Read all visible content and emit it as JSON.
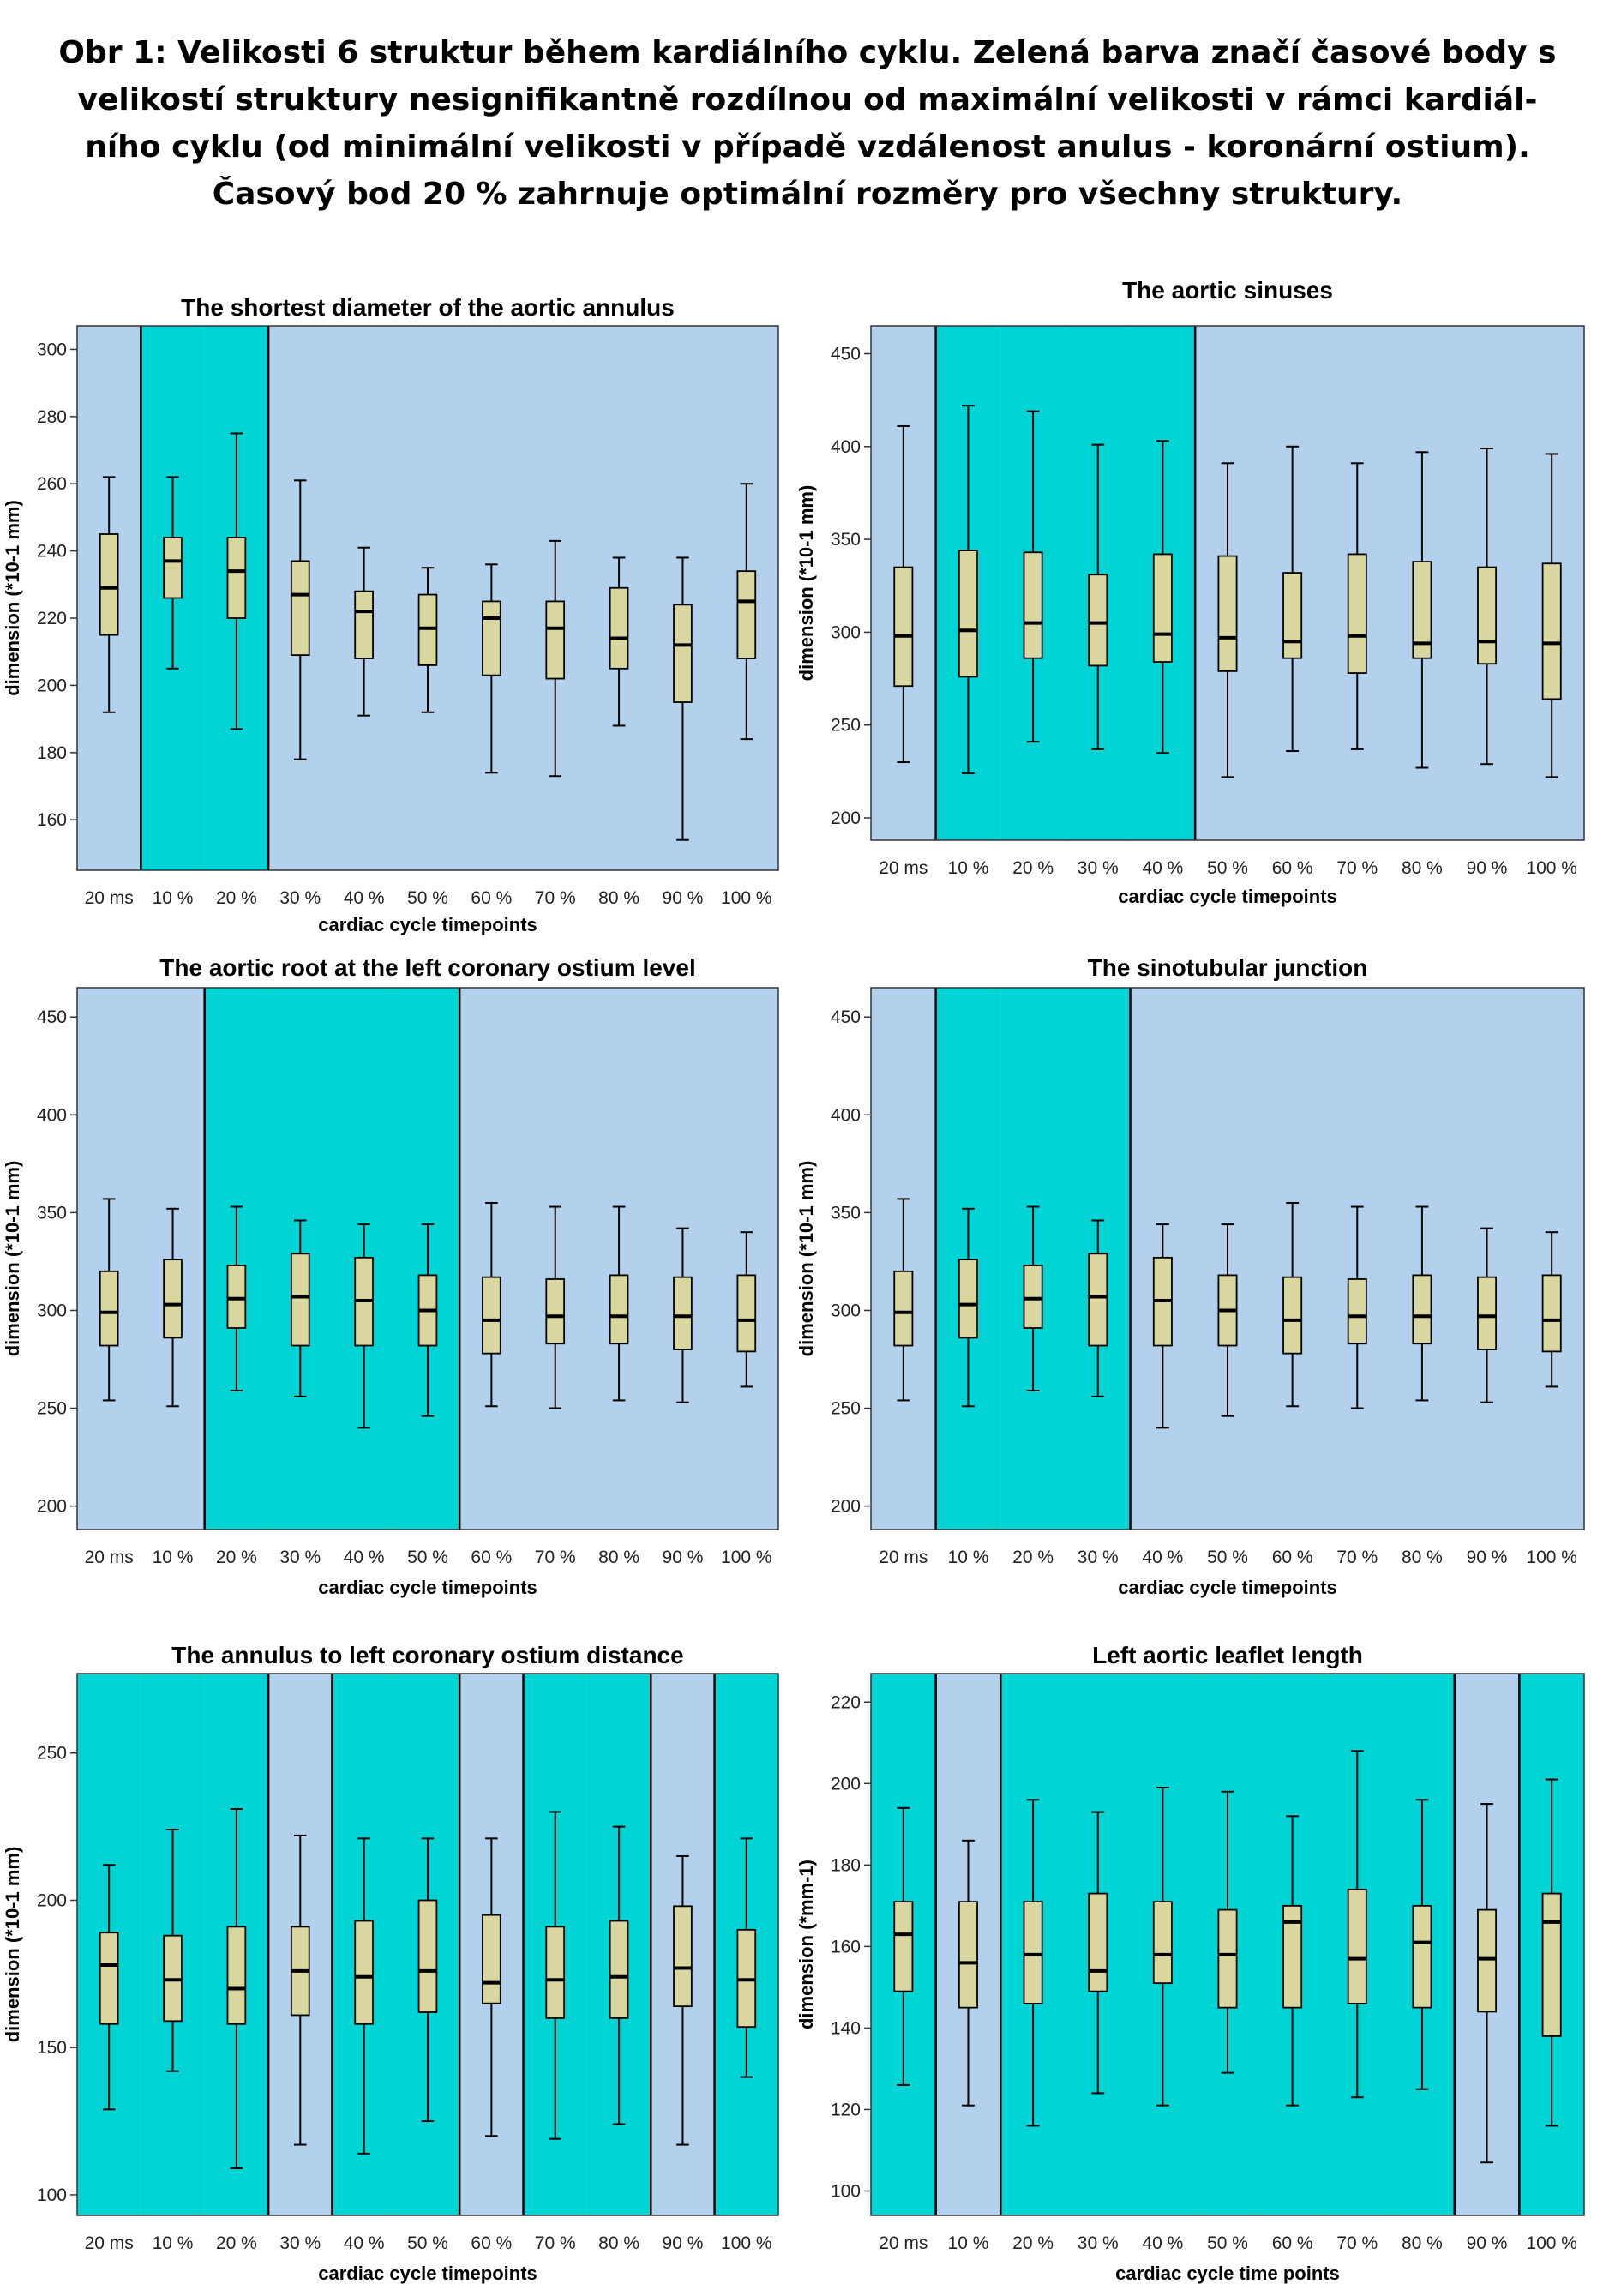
{
  "caption": {
    "line1": "Obr 1: Velikosti 6 struktur během kardiálního cyklu. Zelená barva značí časové body s",
    "line2": "velikostí struktury nesignifikantně rozdílnou od maximální velikosti v rámci kardiál-",
    "line3": "ního cyklu (od minimální velikosti v případě vzdálenost anulus - koronární ostium).",
    "line4": "Časový bod 20 % zahrnuje optimální rozměry pro všechny struktury."
  },
  "colors": {
    "background_blue": "#b3d0ec",
    "highlight_cyan": "#00d4d4",
    "box_fill": "#d9d6a0",
    "box_stroke": "#000000"
  },
  "chart_data": [
    {
      "type": "boxplot",
      "title": "The shortest diameter of the aortic annulus",
      "xlabel": "cardiac cycle timepoints",
      "ylabel": "dimension (*10-1 mm)",
      "categories": [
        "20 ms",
        "10 %",
        "20 %",
        "30 %",
        "40 %",
        "50 %",
        "60 %",
        "70 %",
        "80 %",
        "90 %",
        "100 %"
      ],
      "ylim": [
        145,
        307
      ],
      "yticks": [
        160,
        180,
        200,
        220,
        240,
        260,
        280,
        300
      ],
      "highlighted": [
        false,
        true,
        true,
        false,
        false,
        false,
        false,
        false,
        false,
        false,
        false
      ],
      "boxes": [
        {
          "min": 192,
          "q1": 215,
          "median": 229,
          "q3": 245,
          "max": 262
        },
        {
          "min": 205,
          "q1": 226,
          "median": 237,
          "q3": 244,
          "max": 262
        },
        {
          "min": 187,
          "q1": 220,
          "median": 234,
          "q3": 244,
          "max": 275
        },
        {
          "min": 178,
          "q1": 209,
          "median": 227,
          "q3": 237,
          "max": 261
        },
        {
          "min": 191,
          "q1": 208,
          "median": 222,
          "q3": 228,
          "max": 241
        },
        {
          "min": 192,
          "q1": 206,
          "median": 217,
          "q3": 227,
          "max": 235
        },
        {
          "min": 174,
          "q1": 203,
          "median": 220,
          "q3": 225,
          "max": 236
        },
        {
          "min": 173,
          "q1": 202,
          "median": 217,
          "q3": 225,
          "max": 243
        },
        {
          "min": 188,
          "q1": 205,
          "median": 214,
          "q3": 229,
          "max": 238
        },
        {
          "min": 154,
          "q1": 195,
          "median": 212,
          "q3": 224,
          "max": 238
        },
        {
          "min": 184,
          "q1": 208,
          "median": 225,
          "q3": 234,
          "max": 260
        }
      ]
    },
    {
      "type": "boxplot",
      "title": "The aortic sinuses",
      "xlabel": "cardiac cycle timepoints",
      "ylabel": "dimension (*10-1 mm)",
      "categories": [
        "20 ms",
        "10 %",
        "20 %",
        "30 %",
        "40 %",
        "50 %",
        "60 %",
        "70 %",
        "80 %",
        "90 %",
        "100 %"
      ],
      "ylim": [
        188,
        465
      ],
      "yticks": [
        200,
        250,
        300,
        350,
        400,
        450
      ],
      "highlighted": [
        false,
        true,
        true,
        true,
        true,
        false,
        false,
        false,
        false,
        false,
        false
      ],
      "boxes": [
        {
          "min": 230,
          "q1": 271,
          "median": 298,
          "q3": 335,
          "max": 411
        },
        {
          "min": 224,
          "q1": 276,
          "median": 301,
          "q3": 344,
          "max": 422
        },
        {
          "min": 241,
          "q1": 286,
          "median": 305,
          "q3": 343,
          "max": 419
        },
        {
          "min": 237,
          "q1": 282,
          "median": 305,
          "q3": 331,
          "max": 401
        },
        {
          "min": 235,
          "q1": 284,
          "median": 299,
          "q3": 342,
          "max": 403
        },
        {
          "min": 222,
          "q1": 279,
          "median": 297,
          "q3": 341,
          "max": 391
        },
        {
          "min": 236,
          "q1": 286,
          "median": 295,
          "q3": 332,
          "max": 400
        },
        {
          "min": 237,
          "q1": 278,
          "median": 298,
          "q3": 342,
          "max": 391
        },
        {
          "min": 227,
          "q1": 286,
          "median": 294,
          "q3": 338,
          "max": 397
        },
        {
          "min": 229,
          "q1": 283,
          "median": 295,
          "q3": 335,
          "max": 399
        },
        {
          "min": 222,
          "q1": 264,
          "median": 294,
          "q3": 337,
          "max": 396
        }
      ]
    },
    {
      "type": "boxplot",
      "title": "The aortic root at the left coronary ostium level",
      "xlabel": "cardiac cycle timepoints",
      "ylabel": "dimension (*10-1 mm)",
      "categories": [
        "20 ms",
        "10 %",
        "20 %",
        "30 %",
        "40 %",
        "50 %",
        "60 %",
        "70 %",
        "80 %",
        "90 %",
        "100 %"
      ],
      "ylim": [
        188,
        465
      ],
      "yticks": [
        200,
        250,
        300,
        350,
        400,
        450
      ],
      "highlighted": [
        false,
        false,
        true,
        true,
        true,
        true,
        false,
        false,
        false,
        false,
        false
      ],
      "boxes": [
        {
          "min": 254,
          "q1": 282,
          "median": 299,
          "q3": 320,
          "max": 357
        },
        {
          "min": 251,
          "q1": 286,
          "median": 303,
          "q3": 326,
          "max": 352
        },
        {
          "min": 259,
          "q1": 291,
          "median": 306,
          "q3": 323,
          "max": 353
        },
        {
          "min": 256,
          "q1": 282,
          "median": 307,
          "q3": 329,
          "max": 346
        },
        {
          "min": 240,
          "q1": 282,
          "median": 305,
          "q3": 327,
          "max": 344
        },
        {
          "min": 246,
          "q1": 282,
          "median": 300,
          "q3": 318,
          "max": 344
        },
        {
          "min": 251,
          "q1": 278,
          "median": 295,
          "q3": 317,
          "max": 355
        },
        {
          "min": 250,
          "q1": 283,
          "median": 297,
          "q3": 316,
          "max": 353
        },
        {
          "min": 254,
          "q1": 283,
          "median": 297,
          "q3": 318,
          "max": 353
        },
        {
          "min": 253,
          "q1": 280,
          "median": 297,
          "q3": 317,
          "max": 342
        },
        {
          "min": 261,
          "q1": 279,
          "median": 295,
          "q3": 318,
          "max": 340
        }
      ]
    },
    {
      "type": "boxplot",
      "title": "The sinotubular junction",
      "xlabel": "cardiac cycle timepoints",
      "ylabel": "dimension (*10-1 mm)",
      "categories": [
        "20 ms",
        "10 %",
        "20 %",
        "30 %",
        "40 %",
        "50 %",
        "60 %",
        "70 %",
        "80 %",
        "90 %",
        "100 %"
      ],
      "ylim": [
        188,
        465
      ],
      "yticks": [
        200,
        250,
        300,
        350,
        400,
        450
      ],
      "highlighted": [
        false,
        true,
        true,
        true,
        false,
        false,
        false,
        false,
        false,
        false,
        false
      ],
      "boxes": [
        {
          "min": 254,
          "q1": 282,
          "median": 299,
          "q3": 320,
          "max": 357
        },
        {
          "min": 251,
          "q1": 286,
          "median": 303,
          "q3": 326,
          "max": 352
        },
        {
          "min": 259,
          "q1": 291,
          "median": 306,
          "q3": 323,
          "max": 353
        },
        {
          "min": 256,
          "q1": 282,
          "median": 307,
          "q3": 329,
          "max": 346
        },
        {
          "min": 240,
          "q1": 282,
          "median": 305,
          "q3": 327,
          "max": 344
        },
        {
          "min": 246,
          "q1": 282,
          "median": 300,
          "q3": 318,
          "max": 344
        },
        {
          "min": 251,
          "q1": 278,
          "median": 295,
          "q3": 317,
          "max": 355
        },
        {
          "min": 250,
          "q1": 283,
          "median": 297,
          "q3": 316,
          "max": 353
        },
        {
          "min": 254,
          "q1": 283,
          "median": 297,
          "q3": 318,
          "max": 353
        },
        {
          "min": 253,
          "q1": 280,
          "median": 297,
          "q3": 317,
          "max": 342
        },
        {
          "min": 261,
          "q1": 279,
          "median": 295,
          "q3": 318,
          "max": 340
        }
      ]
    },
    {
      "type": "boxplot",
      "title": "The annulus to left coronary ostium distance",
      "xlabel": "cardiac cycle timepoints",
      "ylabel": "dimension (*10-1 mm)",
      "categories": [
        "20 ms",
        "10 %",
        "20 %",
        "30 %",
        "40 %",
        "50 %",
        "60 %",
        "70 %",
        "80 %",
        "90 %",
        "100 %"
      ],
      "ylim": [
        93,
        277
      ],
      "yticks": [
        100,
        150,
        200,
        250
      ],
      "highlighted": [
        true,
        true,
        true,
        false,
        true,
        true,
        false,
        true,
        true,
        false,
        true
      ],
      "boxes": [
        {
          "min": 129,
          "q1": 158,
          "median": 178,
          "q3": 189,
          "max": 212
        },
        {
          "min": 142,
          "q1": 159,
          "median": 173,
          "q3": 188,
          "max": 224
        },
        {
          "min": 109,
          "q1": 158,
          "median": 170,
          "q3": 191,
          "max": 231
        },
        {
          "min": 117,
          "q1": 161,
          "median": 176,
          "q3": 191,
          "max": 222
        },
        {
          "min": 114,
          "q1": 158,
          "median": 174,
          "q3": 193,
          "max": 221
        },
        {
          "min": 125,
          "q1": 162,
          "median": 176,
          "q3": 200,
          "max": 221
        },
        {
          "min": 120,
          "q1": 165,
          "median": 172,
          "q3": 195,
          "max": 221
        },
        {
          "min": 119,
          "q1": 160,
          "median": 173,
          "q3": 191,
          "max": 230
        },
        {
          "min": 124,
          "q1": 160,
          "median": 174,
          "q3": 193,
          "max": 225
        },
        {
          "min": 117,
          "q1": 164,
          "median": 177,
          "q3": 198,
          "max": 215
        },
        {
          "min": 140,
          "q1": 157,
          "median": 173,
          "q3": 190,
          "max": 221
        }
      ]
    },
    {
      "type": "boxplot",
      "title": "Left aortic leaflet length",
      "xlabel": "cardiac cycle time points",
      "ylabel": "dimension (*mm-1)",
      "categories": [
        "20 ms",
        "10 %",
        "20 %",
        "30 %",
        "40 %",
        "50 %",
        "60 %",
        "70 %",
        "80 %",
        "90 %",
        "100 %"
      ],
      "ylim": [
        94,
        227
      ],
      "yticks": [
        100,
        120,
        140,
        160,
        180,
        200,
        220
      ],
      "highlighted": [
        true,
        false,
        true,
        true,
        true,
        true,
        true,
        true,
        true,
        false,
        true
      ],
      "boxes": [
        {
          "min": 126,
          "q1": 149,
          "median": 163,
          "q3": 171,
          "max": 194
        },
        {
          "min": 121,
          "q1": 145,
          "median": 156,
          "q3": 171,
          "max": 186
        },
        {
          "min": 116,
          "q1": 146,
          "median": 158,
          "q3": 171,
          "max": 196
        },
        {
          "min": 124,
          "q1": 149,
          "median": 154,
          "q3": 173,
          "max": 193
        },
        {
          "min": 121,
          "q1": 151,
          "median": 158,
          "q3": 171,
          "max": 199
        },
        {
          "min": 129,
          "q1": 145,
          "median": 158,
          "q3": 169,
          "max": 198
        },
        {
          "min": 121,
          "q1": 145,
          "median": 166,
          "q3": 170,
          "max": 192
        },
        {
          "min": 123,
          "q1": 146,
          "median": 157,
          "q3": 174,
          "max": 208
        },
        {
          "min": 125,
          "q1": 145,
          "median": 161,
          "q3": 170,
          "max": 196
        },
        {
          "min": 107,
          "q1": 144,
          "median": 157,
          "q3": 169,
          "max": 195
        },
        {
          "min": 116,
          "q1": 138,
          "median": 166,
          "q3": 173,
          "max": 201
        }
      ]
    }
  ]
}
